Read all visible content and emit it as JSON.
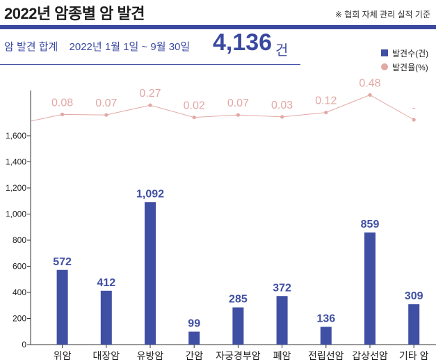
{
  "header": {
    "title": "2022년 암종별 암 발견",
    "note": "※ 협회 자체 관리 실적 기준"
  },
  "summary": {
    "label": "암 발견 합계",
    "period": "2022년 1월 1일 ~ 9월 30일",
    "total": "4,136",
    "unit": "건"
  },
  "colors": {
    "bar": "#3f4fa3",
    "rate": "#e2a8a4",
    "accent": "#3a49a0"
  },
  "chart_data": {
    "type": "bar",
    "categories": [
      "위암",
      "대장암",
      "유방암",
      "간암",
      "자궁경부암",
      "폐암",
      "전립선암",
      "갑상선암",
      "기타 암"
    ],
    "series": [
      {
        "name": "발견수(건)",
        "type": "bar",
        "values": [
          572,
          412,
          1092,
          99,
          285,
          372,
          136,
          859,
          309
        ],
        "labels": [
          "572",
          "412",
          "1,092",
          "99",
          "285",
          "372",
          "136",
          "859",
          "309"
        ]
      },
      {
        "name": "발견율(%)",
        "type": "line",
        "values": [
          0.08,
          0.07,
          0.27,
          0.02,
          0.07,
          0.03,
          0.12,
          0.48,
          null
        ],
        "labels": [
          "0.08",
          "0.07",
          "0.27",
          "0.02",
          "0.07",
          "0.03",
          "0.12",
          "0.48",
          "-"
        ]
      }
    ],
    "yticks": [
      "0",
      "200",
      "400",
      "600",
      "800",
      "1,000",
      "1,200",
      "1,400",
      "1,600"
    ],
    "ylim": [
      0,
      1700
    ],
    "legend_position": "top-right",
    "grid": false
  }
}
